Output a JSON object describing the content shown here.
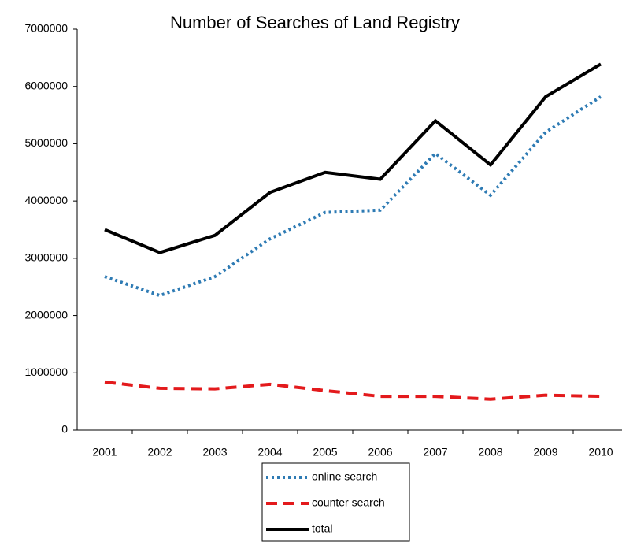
{
  "chart_data": {
    "type": "line",
    "title": "Number of Searches of Land Registry",
    "categories": [
      "2001",
      "2002",
      "2003",
      "2004",
      "2005",
      "2006",
      "2007",
      "2008",
      "2009",
      "2010"
    ],
    "series": [
      {
        "name": "online search",
        "color": "#2e7bb4",
        "dash": "dotted",
        "values": [
          2680000,
          2350000,
          2680000,
          3340000,
          3800000,
          3840000,
          4830000,
          4100000,
          5200000,
          5820000
        ]
      },
      {
        "name": "counter search",
        "color": "#e31a1c",
        "dash": "dashed",
        "values": [
          840000,
          730000,
          720000,
          800000,
          690000,
          590000,
          590000,
          540000,
          610000,
          590000
        ]
      },
      {
        "name": "total",
        "color": "#000000",
        "dash": "solid",
        "values": [
          3500000,
          3100000,
          3400000,
          4150000,
          4500000,
          4380000,
          5400000,
          4630000,
          5820000,
          6390000
        ]
      }
    ],
    "ylim": [
      0,
      7000000
    ],
    "yticks": [
      0,
      1000000,
      2000000,
      3000000,
      4000000,
      5000000,
      6000000,
      7000000
    ],
    "grid": false,
    "legend": "bottom"
  }
}
